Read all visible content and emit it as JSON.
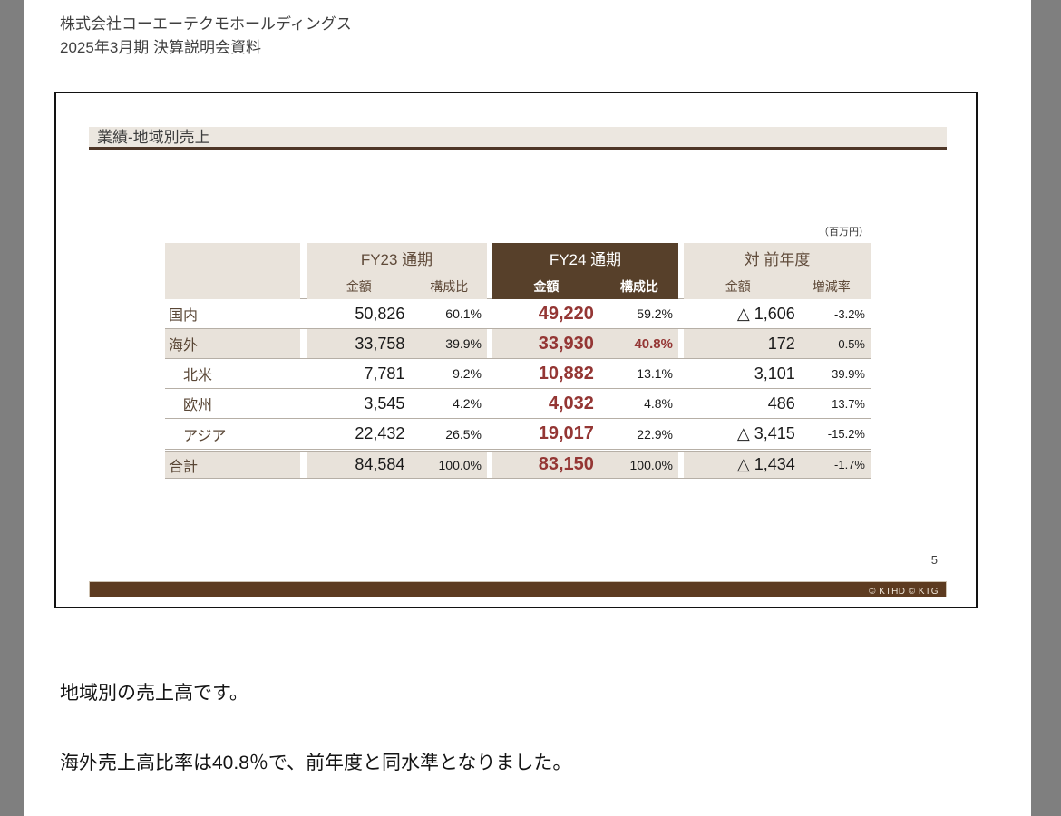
{
  "document": {
    "header_line1": "株式会社コーエーテクモホールディングス",
    "header_line2": "2025年3月期 決算説明会資料",
    "commentary_line1": "地域別の売上高です。",
    "commentary_line2": "海外売上高比率は40.8％で、前年度と同水準となりました。"
  },
  "slide": {
    "title": "業績-地域別売上",
    "unit_note": "（百万円）",
    "page_number": "5",
    "copyright": "© KTHD © KTG"
  },
  "table": {
    "groups": {
      "fy23": {
        "title": "FY23 通期",
        "col1": "金額",
        "col2": "構成比"
      },
      "fy24": {
        "title": "FY24 通期",
        "col1": "金額",
        "col2": "構成比"
      },
      "yoy": {
        "title": "対 前年度",
        "col1": "金額",
        "col2": "増減率"
      }
    },
    "rows": [
      {
        "label": "国内",
        "fy23_amt": "50,826",
        "fy23_pct": "60.1%",
        "fy24_amt": "49,220",
        "fy24_pct": "59.2%",
        "yoy_amt": "△ 1,606",
        "yoy_pct": "-3.2%"
      },
      {
        "label": "海外",
        "fy23_amt": "33,758",
        "fy23_pct": "39.9%",
        "fy24_amt": "33,930",
        "fy24_pct": "40.8%",
        "yoy_amt": "172",
        "yoy_pct": "0.5%"
      },
      {
        "label": "北米",
        "fy23_amt": "7,781",
        "fy23_pct": "9.2%",
        "fy24_amt": "10,882",
        "fy24_pct": "13.1%",
        "yoy_amt": "3,101",
        "yoy_pct": "39.9%"
      },
      {
        "label": "欧州",
        "fy23_amt": "3,545",
        "fy23_pct": "4.2%",
        "fy24_amt": "4,032",
        "fy24_pct": "4.8%",
        "yoy_amt": "486",
        "yoy_pct": "13.7%"
      },
      {
        "label": "アジア",
        "fy23_amt": "22,432",
        "fy23_pct": "26.5%",
        "fy24_amt": "19,017",
        "fy24_pct": "22.9%",
        "yoy_amt": "△ 3,415",
        "yoy_pct": "-15.2%"
      },
      {
        "label": "合計",
        "fy23_amt": "84,584",
        "fy23_pct": "100.0%",
        "fy24_amt": "83,150",
        "fy24_pct": "100.0%",
        "yoy_amt": "△ 1,434",
        "yoy_pct": "-1.7%"
      }
    ]
  },
  "colors": {
    "viewer_background": "#7f7f7f",
    "accent_brown": "#57402a",
    "footer_brown": "#5d3b20",
    "highlight_dark_red": "#943634",
    "table_beige": "#e9e3db",
    "title_bar_beige": "#ece7e0"
  }
}
